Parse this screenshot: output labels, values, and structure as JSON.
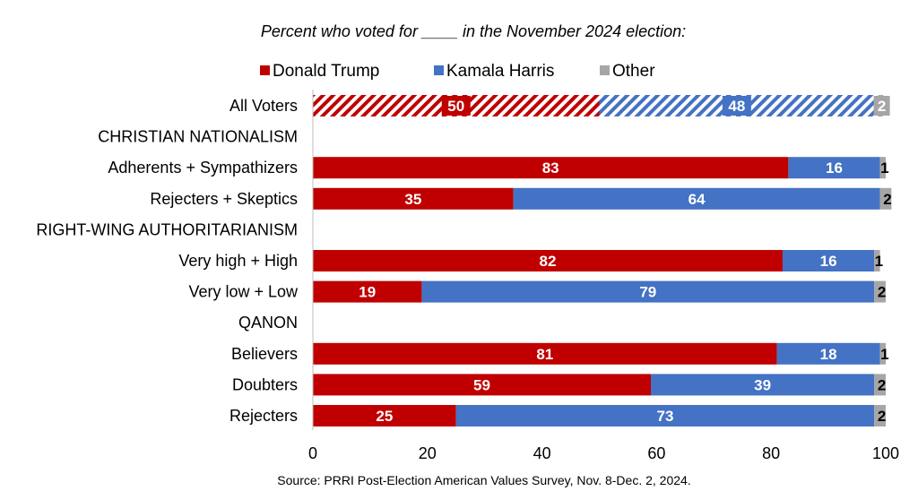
{
  "chart_data": {
    "type": "bar",
    "orientation": "horizontal",
    "stacked": true,
    "title": "Percent who voted for ____ in the November 2024 election:",
    "source": "Source: PRRI Post-Election American Values Survey, Nov. 8-Dec. 2, 2024.",
    "xlim": [
      0,
      100
    ],
    "xticks": [
      "0",
      "20",
      "40",
      "60",
      "80",
      "100"
    ],
    "colors": {
      "trump": "#C00000",
      "harris": "#4472C4",
      "other": "#A6A6A6"
    },
    "legend": [
      {
        "key": "trump",
        "label": "Donald Trump"
      },
      {
        "key": "harris",
        "label": "Kamala Harris"
      },
      {
        "key": "other",
        "label": "Other"
      }
    ],
    "rows": [
      {
        "label": "All Voters",
        "values": [
          50,
          48,
          2
        ],
        "pattern": "hatched"
      },
      {
        "label": "CHRISTIAN NATIONALISM",
        "header": true
      },
      {
        "label": "Adherents + Sympathizers",
        "values": [
          83,
          16,
          1
        ]
      },
      {
        "label": "Rejecters + Skeptics",
        "values": [
          35,
          64,
          2
        ]
      },
      {
        "label": "RIGHT-WING AUTHORITARIANISM",
        "header": true
      },
      {
        "label": "Very high + High",
        "values": [
          82,
          16,
          1
        ]
      },
      {
        "label": "Very low + Low",
        "values": [
          19,
          79,
          2
        ]
      },
      {
        "label": "QANON",
        "header": true
      },
      {
        "label": "Believers",
        "values": [
          81,
          18,
          1
        ]
      },
      {
        "label": "Doubters",
        "values": [
          59,
          39,
          2
        ]
      },
      {
        "label": "Rejecters",
        "values": [
          25,
          73,
          2
        ]
      }
    ]
  }
}
